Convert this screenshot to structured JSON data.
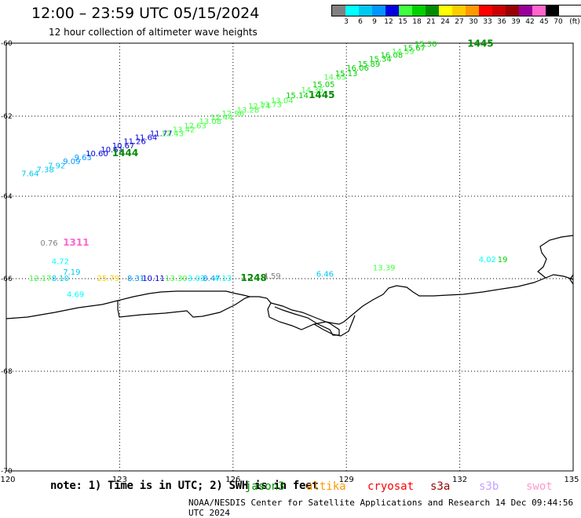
{
  "header": {
    "title": "12:00 – 23:59 UTC 05/15/2024",
    "subtitle": "12 hour collection of altimeter wave heights"
  },
  "legend": {
    "unit": "(ft)",
    "bins": [
      {
        "label": "",
        "color": "#808080"
      },
      {
        "label": "3",
        "color": "#00ffff"
      },
      {
        "label": "6",
        "color": "#00c8f0"
      },
      {
        "label": "9",
        "color": "#0096ff"
      },
      {
        "label": "12",
        "color": "#0000e0"
      },
      {
        "label": "15",
        "color": "#40ff40"
      },
      {
        "label": "18",
        "color": "#00d000"
      },
      {
        "label": "21",
        "color": "#008c00"
      },
      {
        "label": "24",
        "color": "#ffff00"
      },
      {
        "label": "27",
        "color": "#ffcc00"
      },
      {
        "label": "30",
        "color": "#ff9900"
      },
      {
        "label": "33",
        "color": "#ff0000"
      },
      {
        "label": "36",
        "color": "#cc0000"
      },
      {
        "label": "39",
        "color": "#990000"
      },
      {
        "label": "42",
        "color": "#990099"
      },
      {
        "label": "45",
        "color": "#ff66cc"
      },
      {
        "label": "70",
        "color": "#000000"
      }
    ]
  },
  "axes": {
    "lon_ticks": [
      "120",
      "123",
      "126",
      "129",
      "132",
      "135"
    ],
    "lat_ticks": [
      "-60",
      "-62",
      "-64",
      "-66",
      "-68",
      "-70"
    ]
  },
  "observations": [
    {
      "text": "7.64",
      "lon": 120.4,
      "lat": -63.5,
      "color": "#00c8f0"
    },
    {
      "text": "7.38",
      "lon": 120.8,
      "lat": -63.4,
      "color": "#00c8f0"
    },
    {
      "text": "7.92",
      "lon": 121.1,
      "lat": -63.3,
      "color": "#00c8f0"
    },
    {
      "text": "9.09",
      "lon": 121.5,
      "lat": -63.2,
      "color": "#0096ff"
    },
    {
      "text": "9.63",
      "lon": 121.8,
      "lat": -63.1,
      "color": "#0096ff"
    },
    {
      "text": "10.60",
      "lon": 122.1,
      "lat": -63.0,
      "color": "#0000e0"
    },
    {
      "text": "10.61",
      "lon": 122.5,
      "lat": -62.9,
      "color": "#0000e0"
    },
    {
      "text": "10.67",
      "lon": 122.8,
      "lat": -62.8,
      "color": "#0000e0"
    },
    {
      "text": "11.26",
      "lon": 123.1,
      "lat": -62.7,
      "color": "#0000e0"
    },
    {
      "text": "11.64",
      "lon": 123.4,
      "lat": -62.6,
      "color": "#0000e0"
    },
    {
      "text": "11.77",
      "lon": 123.8,
      "lat": -62.5,
      "color": "#0000e0"
    },
    {
      "text": "1444",
      "lon": 122.8,
      "lat": -63.0,
      "color": "#008c00",
      "bold": true
    },
    {
      "text": "12.43",
      "lon": 124.1,
      "lat": -62.5,
      "color": "#40ff40"
    },
    {
      "text": "13.42",
      "lon": 124.4,
      "lat": -62.4,
      "color": "#40ff40"
    },
    {
      "text": "12.63",
      "lon": 124.7,
      "lat": -62.3,
      "color": "#40ff40"
    },
    {
      "text": "13.08",
      "lon": 125.1,
      "lat": -62.2,
      "color": "#40ff40"
    },
    {
      "text": "12.44",
      "lon": 125.4,
      "lat": -62.1,
      "color": "#40ff40"
    },
    {
      "text": "12.96",
      "lon": 125.7,
      "lat": -62.0,
      "color": "#40ff40"
    },
    {
      "text": "13.28",
      "lon": 126.1,
      "lat": -61.9,
      "color": "#40ff40"
    },
    {
      "text": "12.74",
      "lon": 126.4,
      "lat": -61.8,
      "color": "#40ff40"
    },
    {
      "text": "13.73",
      "lon": 126.7,
      "lat": -61.75,
      "color": "#40ff40"
    },
    {
      "text": "13.04",
      "lon": 127.0,
      "lat": -61.65,
      "color": "#40ff40"
    },
    {
      "text": "15.14",
      "lon": 127.4,
      "lat": -61.5,
      "color": "#00d000"
    },
    {
      "text": "1445",
      "lon": 128.0,
      "lat": -61.5,
      "color": "#008c00",
      "bold": true
    },
    {
      "text": "14.36",
      "lon": 127.8,
      "lat": -61.35,
      "color": "#40ff40"
    },
    {
      "text": "15.05",
      "lon": 128.1,
      "lat": -61.2,
      "color": "#00d000"
    },
    {
      "text": "14.65",
      "lon": 128.4,
      "lat": -61.0,
      "color": "#40ff40"
    },
    {
      "text": "15.13",
      "lon": 128.7,
      "lat": -60.9,
      "color": "#00d000"
    },
    {
      "text": "16.06",
      "lon": 129.0,
      "lat": -60.75,
      "color": "#00d000"
    },
    {
      "text": "15.89",
      "lon": 129.3,
      "lat": -60.65,
      "color": "#00d000"
    },
    {
      "text": "15.34",
      "lon": 129.6,
      "lat": -60.5,
      "color": "#00d000"
    },
    {
      "text": "16.08",
      "lon": 129.9,
      "lat": -60.4,
      "color": "#00d000"
    },
    {
      "text": "14.59",
      "lon": 130.2,
      "lat": -60.3,
      "color": "#40ff40"
    },
    {
      "text": "15.67",
      "lon": 130.5,
      "lat": -60.2,
      "color": "#00d000"
    },
    {
      "text": "15.30",
      "lon": 130.8,
      "lat": -60.1,
      "color": "#00d000"
    },
    {
      "text": "1445",
      "lon": 132.2,
      "lat": -60.1,
      "color": "#008c00",
      "bold": true
    },
    {
      "text": "0.76",
      "lon": 120.9,
      "lat": -65.2,
      "color": "#808080"
    },
    {
      "text": "1311",
      "lon": 121.5,
      "lat": -65.2,
      "color": "#ff66cc",
      "bold": true
    },
    {
      "text": "4.72",
      "lon": 121.2,
      "lat": -65.65,
      "color": "#00ffff"
    },
    {
      "text": "7.19",
      "lon": 121.5,
      "lat": -65.9,
      "color": "#00c8f0"
    },
    {
      "text": "12.17",
      "lon": 120.6,
      "lat": -66.05,
      "color": "#40ff40"
    },
    {
      "text": "8.10",
      "lon": 121.2,
      "lat": -66.05,
      "color": "#00c8f0"
    },
    {
      "text": "4.69",
      "lon": 121.6,
      "lat": -66.4,
      "color": "#00ffff"
    },
    {
      "text": "25.79",
      "lon": 122.4,
      "lat": -66.05,
      "color": "#ffcc00"
    },
    {
      "text": "8.31",
      "lon": 123.2,
      "lat": -66.05,
      "color": "#0096ff"
    },
    {
      "text": "10.11",
      "lon": 123.6,
      "lat": -66.05,
      "color": "#0000e0"
    },
    {
      "text": "13.30",
      "lon": 124.2,
      "lat": -66.05,
      "color": "#40ff40"
    },
    {
      "text": "3.03",
      "lon": 124.8,
      "lat": -66.05,
      "color": "#00ffff"
    },
    {
      "text": "8.47",
      "lon": 125.2,
      "lat": -66.05,
      "color": "#0096ff"
    },
    {
      "text": "4.13",
      "lon": 125.5,
      "lat": -66.05,
      "color": "#00ffff"
    },
    {
      "text": "1248",
      "lon": 126.2,
      "lat": -66.05,
      "color": "#008c00",
      "bold": true
    },
    {
      "text": "4.59",
      "lon": 126.8,
      "lat": -66.0,
      "color": "#808080"
    },
    {
      "text": "6.46",
      "lon": 128.2,
      "lat": -65.95,
      "color": "#00c8f0"
    },
    {
      "text": "13.39",
      "lon": 129.7,
      "lat": -65.8,
      "color": "#40ff40"
    },
    {
      "text": "4.02",
      "lon": 132.5,
      "lat": -65.6,
      "color": "#00ffff"
    },
    {
      "text": "19",
      "lon": 133.0,
      "lat": -65.6,
      "color": "#00d000"
    }
  ],
  "footer": {
    "note": "note: 1) Time is in UTC; 2) SWH is in feet",
    "satellites": [
      {
        "name": "jason3",
        "color": "#008c00"
      },
      {
        "name": "altika",
        "color": "#ff9900"
      },
      {
        "name": "cryosat",
        "color": "#ff0000"
      },
      {
        "name": "s3a",
        "color": "#990000"
      },
      {
        "name": "s3b",
        "color": "#c8a0ff"
      },
      {
        "name": "swot",
        "color": "#ff99cc"
      }
    ],
    "credit": "NOAA/NESDIS Center for Satellite Applications and Research   14 Dec 09:44:56 UTC 2024"
  }
}
